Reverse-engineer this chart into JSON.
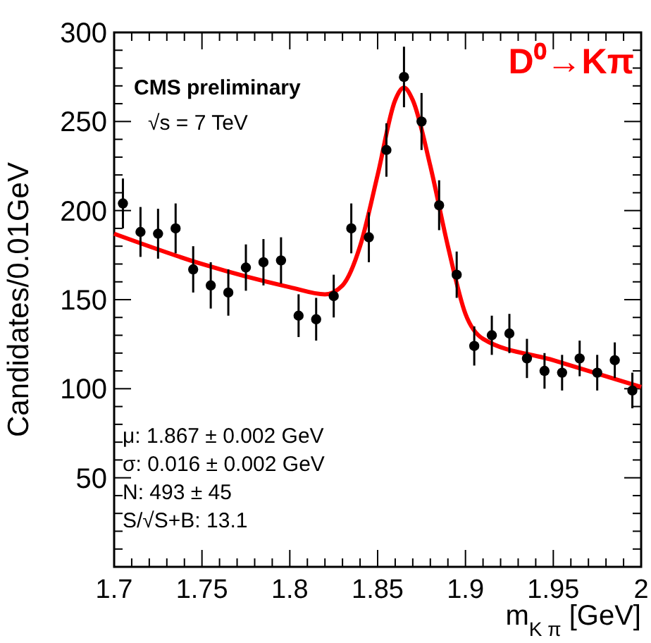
{
  "chart_data": {
    "type": "scatter",
    "xlabel": "m$_{K π}$ [GeV]",
    "ylabel": "Candidates/0.01GeV",
    "xlim": [
      1.7,
      2.0
    ],
    "ylim": [
      0,
      300
    ],
    "xticks": [
      1.7,
      {
        "value": 1.71,
        "label": null
      },
      {
        "value": 1.72,
        "label": null
      },
      {
        "value": 1.73,
        "label": null
      },
      {
        "value": 1.74,
        "label": null
      },
      1.75,
      {
        "value": 1.76,
        "label": null
      },
      {
        "value": 1.77,
        "label": null
      },
      {
        "value": 1.78,
        "label": null
      },
      {
        "value": 1.79,
        "label": null
      },
      1.8,
      {
        "value": 1.81,
        "label": null
      },
      {
        "value": 1.82,
        "label": null
      },
      {
        "value": 1.83,
        "label": null
      },
      {
        "value": 1.84,
        "label": null
      },
      1.85,
      {
        "value": 1.86,
        "label": null
      },
      {
        "value": 1.87,
        "label": null
      },
      {
        "value": 1.88,
        "label": null
      },
      {
        "value": 1.89,
        "label": null
      },
      1.9,
      {
        "value": 1.91,
        "label": null
      },
      {
        "value": 1.92,
        "label": null
      },
      {
        "value": 1.93,
        "label": null
      },
      {
        "value": 1.94,
        "label": null
      },
      1.95,
      {
        "value": 1.96,
        "label": null
      },
      {
        "value": 1.97,
        "label": null
      },
      {
        "value": 1.98,
        "label": null
      },
      {
        "value": 1.99,
        "label": null
      },
      2
    ],
    "yticks": [
      {
        "value": 10,
        "label": null
      },
      {
        "value": 20,
        "label": null
      },
      {
        "value": 30,
        "label": null
      },
      {
        "value": 40,
        "label": null
      },
      50,
      {
        "value": 60,
        "label": null
      },
      {
        "value": 70,
        "label": null
      },
      {
        "value": 80,
        "label": null
      },
      {
        "value": 90,
        "label": null
      },
      100,
      {
        "value": 110,
        "label": null
      },
      {
        "value": 120,
        "label": null
      },
      {
        "value": 130,
        "label": null
      },
      {
        "value": 140,
        "label": null
      },
      150,
      {
        "value": 160,
        "label": null
      },
      {
        "value": 170,
        "label": null
      },
      {
        "value": 180,
        "label": null
      },
      {
        "value": 190,
        "label": null
      },
      200,
      {
        "value": 210,
        "label": null
      },
      {
        "value": 220,
        "label": null
      },
      {
        "value": 230,
        "label": null
      },
      {
        "value": 240,
        "label": null
      },
      250,
      {
        "value": 260,
        "label": null
      },
      {
        "value": 270,
        "label": null
      },
      {
        "value": 280,
        "label": null
      },
      {
        "value": 290,
        "label": null
      },
      300
    ],
    "grid": false,
    "series": [
      {
        "marker": "circle",
        "color": "#000000",
        "x": [
          1.705,
          1.715,
          1.725,
          1.735,
          1.745,
          1.755,
          1.765,
          1.775,
          1.785,
          1.795,
          1.805,
          1.815,
          1.825,
          1.835,
          1.845,
          1.855,
          1.865,
          1.875,
          1.885,
          1.895,
          1.905,
          1.915,
          1.925,
          1.935,
          1.945,
          1.955,
          1.965,
          1.975,
          1.985,
          1.995
        ],
        "values": [
          204,
          188,
          187,
          190,
          167,
          158,
          154,
          168,
          171,
          172,
          141,
          139,
          152,
          190,
          185,
          234,
          275,
          250,
          203,
          164,
          124,
          130,
          131,
          117,
          110,
          109,
          117,
          109,
          116,
          99
        ],
        "errors": [
          14,
          14,
          14,
          14,
          13,
          13,
          13,
          13,
          13,
          13,
          12,
          12,
          12,
          14,
          14,
          15,
          17,
          16,
          14,
          13,
          11,
          11,
          11,
          11,
          10,
          10,
          10,
          10,
          10,
          10
        ]
      },
      {
        "type": "line",
        "color": "#ff0000",
        "x": [
          1.7,
          1.75,
          1.8,
          1.82,
          1.83,
          1.84,
          1.85,
          1.86,
          1.865,
          1.87,
          1.88,
          1.89,
          1.9,
          1.91,
          1.95,
          2.0
        ],
        "values": [
          187,
          170,
          157,
          153,
          158,
          180,
          220,
          262,
          269,
          262,
          225,
          180,
          142,
          128,
          116,
          101
        ]
      }
    ],
    "annotations": [
      "CMS preliminary",
      "√s = 7 TeV",
      "D⁰→Kπ",
      "μ: 1.867 ± 0.002 GeV",
      "σ: 0.016 ± 0.002 GeV",
      "N:  493 ±  45",
      "S/√S+B: 13.1"
    ]
  }
}
